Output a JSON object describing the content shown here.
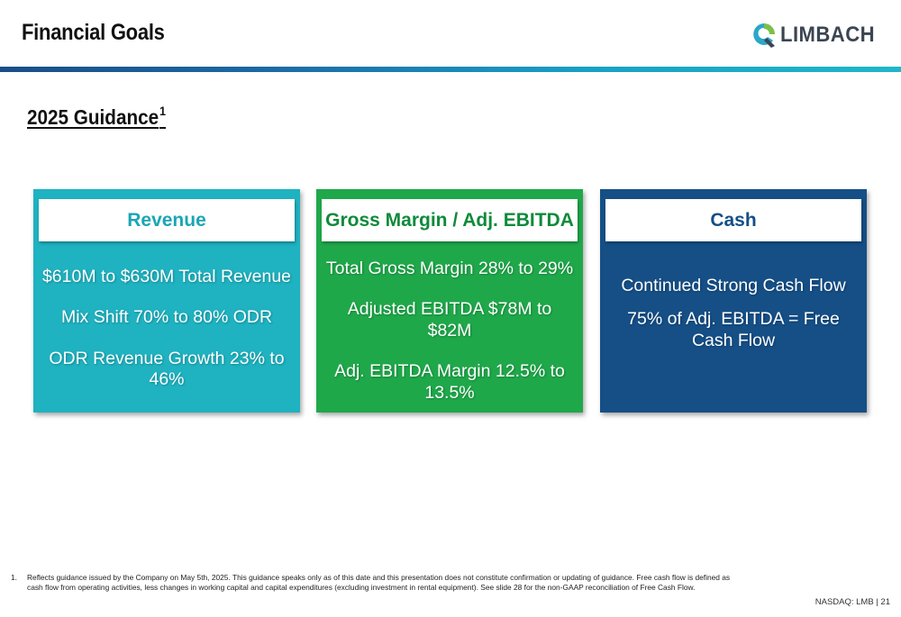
{
  "header": {
    "title": "Financial Goals",
    "logo_text": "LIMBACH",
    "colors": {
      "rule_start": "#1a4e88",
      "rule_end": "#1fb7c9"
    }
  },
  "section": {
    "heading": "2025 Guidance",
    "heading_footnote_ref": "1"
  },
  "cards": [
    {
      "title": "Revenue",
      "color": "#1fb2c0",
      "lines": [
        "$610M to $630M Total Revenue",
        "Mix Shift 70% to 80% ODR",
        "ODR Revenue Growth 23% to 46%"
      ]
    },
    {
      "title": "Gross Margin / Adj. EBITDA",
      "color": "#1fa84a",
      "lines": [
        "Total Gross Margin 28% to 29%",
        "Adjusted EBITDA $78M to $82M",
        "Adj. EBITDA Margin 12.5% to 13.5%"
      ]
    },
    {
      "title": "Cash",
      "color": "#154f86",
      "lines": [
        "Continued Strong Cash Flow",
        "75% of Adj. EBITDA = Free Cash Flow"
      ]
    }
  ],
  "footnote": {
    "number": "1.",
    "text": "Reflects guidance issued by the Company on May 5th, 2025. This guidance speaks only as of this date and this presentation does not constitute confirmation or updating of guidance. Free cash flow is defined as cash flow from operating activities, less changes in working capital and capital expenditures (excluding investment in rental equipment). See slide 28 for the non-GAAP reconciliation of Free Cash Flow."
  },
  "footer": {
    "label": "NASDAQ: LMB | 21"
  }
}
